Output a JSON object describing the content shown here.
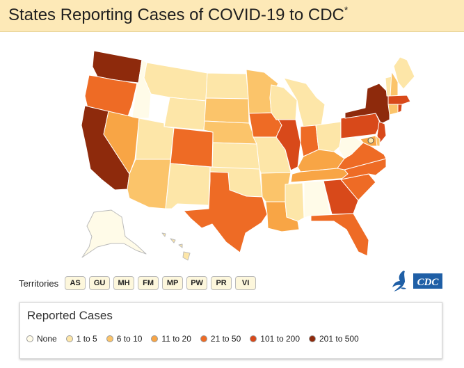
{
  "header": {
    "title": "States Reporting Cases of COVID-19 to CDC",
    "asterisk": "*"
  },
  "colors": {
    "none": "#fffbe8",
    "c1_5": "#fde6a8",
    "c6_10": "#fbc46a",
    "c11_20": "#f8a545",
    "c21_50": "#ee6b25",
    "c101_200": "#d8491a",
    "c201_500": "#8e2a0c",
    "header_bg": "#fde9b7"
  },
  "territories": {
    "label": "Territories",
    "items": [
      "AS",
      "GU",
      "MH",
      "FM",
      "MP",
      "PW",
      "PR",
      "VI"
    ]
  },
  "legend": {
    "title": "Reported Cases",
    "items": [
      {
        "label": "None",
        "color": "#fffbe8"
      },
      {
        "label": "1 to 5",
        "color": "#fde6a8"
      },
      {
        "label": "6 to 10",
        "color": "#fbc46a"
      },
      {
        "label": "11 to 20",
        "color": "#f8a545"
      },
      {
        "label": "21 to 50",
        "color": "#ee6b25"
      },
      {
        "label": "101 to 200",
        "color": "#d8491a"
      },
      {
        "label": "201 to 500",
        "color": "#8e2a0c"
      }
    ]
  },
  "logos": {
    "hhs_icon": "hhs-eagle-icon",
    "cdc_text": "CDC"
  }
}
